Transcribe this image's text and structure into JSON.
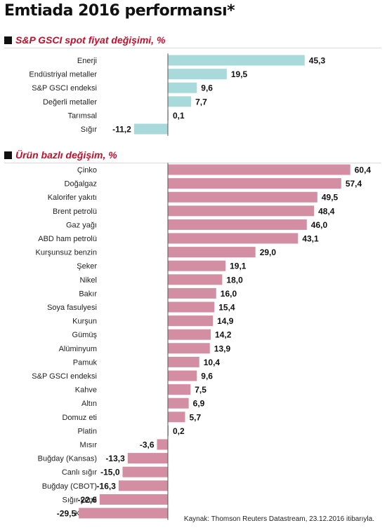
{
  "page": {
    "title": "Emtiada 2016 performansı*",
    "source": "Kaynak: Thomson Reuters Datastream, 23.12.2016 itibarıyla."
  },
  "colors": {
    "section1_bar": "#a8dadc",
    "section2_bar": "#d48ea4",
    "section_title": "#c0102e",
    "zero_line": "#555555"
  },
  "chart_data": [
    {
      "type": "bar",
      "orientation": "horizontal",
      "title": "S&P GSCI spot fiyat değişimi, %",
      "categories": [
        "Enerji",
        "Endüstriyal metaller",
        "S&P GSCI endeksi",
        "Değerli metaller",
        "Tarımsal",
        "Sığır"
      ],
      "values": [
        45.3,
        19.5,
        9.6,
        7.7,
        0.1,
        -11.2
      ],
      "value_labels": [
        "45,3",
        "19,5",
        "9,6",
        "7,7",
        "0,1",
        "-11,2"
      ],
      "xlim": [
        -32,
        62
      ]
    },
    {
      "type": "bar",
      "orientation": "horizontal",
      "title": "Ürün bazlı değişim, %",
      "categories": [
        "Çinko",
        "Doğalgaz",
        "Kalorifer yakıtı",
        "Brent petrolü",
        "Gaz yağı",
        "ABD ham petrolü",
        "Kurşunsuz benzin",
        "Şeker",
        "Nikel",
        "Bakır",
        "Soya fasulyesi",
        "Kurşun",
        "Gümüş",
        "Alüminyum",
        "Pamuk",
        "S&P GSCI endeksi",
        "Kahve",
        "Altın",
        "Domuz eti",
        "Platin",
        "Mısır",
        "Buğday (Kansas)",
        "Canlı sığır",
        "Buğday (CBOT)",
        "Sığır yemi",
        "Kakao"
      ],
      "values": [
        60.4,
        57.4,
        49.5,
        48.4,
        46.0,
        43.1,
        29.0,
        19.1,
        18.0,
        16.0,
        15.4,
        14.9,
        14.2,
        13.9,
        10.4,
        9.6,
        7.5,
        6.9,
        5.7,
        0.2,
        -3.6,
        -13.3,
        -15.0,
        -16.3,
        -22.6,
        -29.5
      ],
      "value_labels": [
        "60,4",
        "57,4",
        "49,5",
        "48,4",
        "46,0",
        "43,1",
        "29,0",
        "19,1",
        "18,0",
        "16,0",
        "15,4",
        "14,9",
        "14,2",
        "13,9",
        "10,4",
        "9,6",
        "7,5",
        "6,9",
        "5,7",
        "0,2",
        "-3,6",
        "-13,3",
        "-15,0",
        "-16,3",
        "-22,6",
        "-29,5"
      ],
      "xlim": [
        -32,
        62
      ]
    }
  ]
}
